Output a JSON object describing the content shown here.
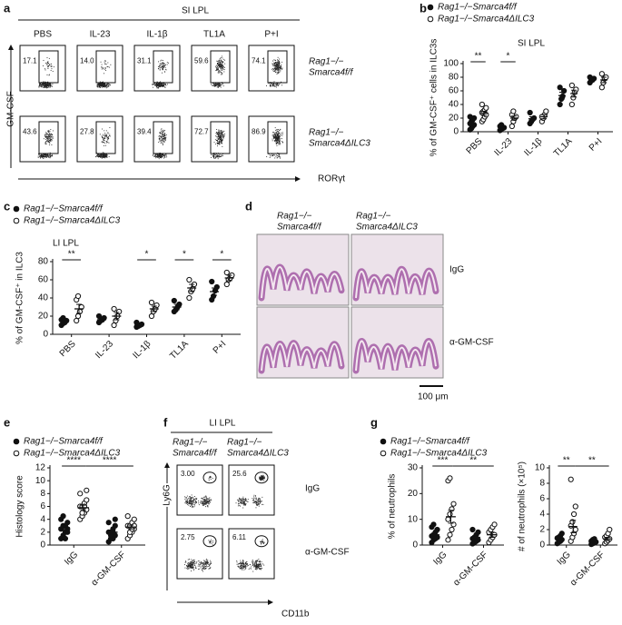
{
  "panel_letters": [
    "a",
    "b",
    "c",
    "d",
    "e",
    "f",
    "g"
  ],
  "panels": {
    "a": {
      "title": "SI LPL",
      "conditions": [
        "PBS",
        "IL-23",
        "IL-1β",
        "TL1A",
        "P+I"
      ],
      "y_axis": "GM-CSF",
      "x_axis": "RORγt",
      "rows": [
        {
          "label": [
            "Rag1−/−",
            "Smarca4f/f"
          ],
          "gates": [
            "17.1",
            "14.0",
            "31.1",
            "59.6",
            "74.1"
          ]
        },
        {
          "label": [
            "Rag1−/−",
            "Smarca4ΔILC3"
          ],
          "gates": [
            "43.6",
            "27.8",
            "39.4",
            "72.7",
            "86.9"
          ]
        }
      ]
    },
    "d": {
      "columns": [
        [
          "Rag1−/−",
          "Smarca4f/f"
        ],
        [
          "Rag1−/−",
          "Smarca4ΔILC3"
        ]
      ],
      "rows": [
        "IgG",
        "α-GM-CSF"
      ],
      "scale_bar": "100 μm"
    },
    "f": {
      "title": "LI LPL",
      "columns": [
        [
          "Rag1−/−",
          "Smarca4f/f"
        ],
        [
          "Rag1−/−",
          "Smarca4ΔILC3"
        ]
      ],
      "rows": [
        "IgG",
        "α-GM-CSF"
      ],
      "y_axis": "Ly6G",
      "x_axis": "CD11b",
      "gates": [
        [
          "3.00",
          "25.6"
        ],
        [
          "2.75",
          "6.11"
        ]
      ]
    }
  },
  "chart_data": [
    {
      "type": "dot",
      "title": "SI LPL",
      "ylabel": "% of GM-CSF⁺ cells in ILC3s",
      "categories": [
        "PBS",
        "IL-23",
        "IL-1β",
        "TL1A",
        "P+I"
      ],
      "ylim": [
        0,
        100
      ],
      "yticks": [
        0,
        20,
        40,
        60,
        80,
        100
      ],
      "significance": [
        "**",
        "*",
        null,
        null,
        null
      ],
      "series": [
        {
          "name": "Rag1−/−Smarca4f/f",
          "color": "#111111",
          "marker": "filled",
          "values": [
            [
              3,
              5,
              8,
              10,
              12,
              15,
              18,
              20,
              22
            ],
            [
              2,
              4,
              5,
              6,
              8,
              10
            ],
            [
              12,
              15,
              18,
              20,
              28
            ],
            [
              40,
              48,
              52,
              60,
              65
            ],
            [
              72,
              75,
              76,
              78,
              80
            ]
          ],
          "means": [
            13,
            6,
            19,
            53,
            76
          ],
          "errors": [
            2,
            1,
            3,
            5,
            1
          ]
        },
        {
          "name": "Rag1−/−Smarca4ΔILC3",
          "color": "#111111",
          "marker": "open",
          "values": [
            [
              15,
              18,
              22,
              25,
              28,
              30,
              32,
              35,
              40
            ],
            [
              8,
              15,
              20,
              22,
              25,
              30
            ],
            [
              15,
              20,
              25,
              30,
              22
            ],
            [
              40,
              50,
              58,
              62,
              68
            ],
            [
              65,
              72,
              78,
              80,
              85
            ]
          ],
          "means": [
            27,
            20,
            22,
            56,
            76
          ],
          "errors": [
            3,
            3,
            3,
            5,
            4
          ]
        }
      ]
    },
    {
      "type": "dot",
      "title": "LI LPL",
      "ylabel": "% of GM-CSF⁺ in ILC3",
      "categories": [
        "PBS",
        "IL-23",
        "IL-1β",
        "TL1A",
        "P+I"
      ],
      "ylim": [
        0,
        80
      ],
      "yticks": [
        0,
        20,
        40,
        60,
        80
      ],
      "significance": [
        "**",
        null,
        "*",
        "*",
        "*"
      ],
      "series": [
        {
          "name": "Rag1−/−Smarca4f/f",
          "color": "#111111",
          "marker": "filled",
          "values": [
            [
              10,
              12,
              13,
              15,
              16,
              18
            ],
            [
              13,
              15,
              16,
              18,
              20
            ],
            [
              8,
              9,
              10,
              11,
              13
            ],
            [
              25,
              27,
              30,
              33,
              37
            ],
            [
              38,
              42,
              48,
              52,
              58
            ]
          ],
          "means": [
            15,
            16,
            10,
            30,
            47
          ],
          "errors": [
            2,
            2,
            1,
            3,
            4
          ]
        },
        {
          "name": "Rag1−/−Smarca4ΔILC3",
          "color": "#111111",
          "marker": "open",
          "values": [
            [
              15,
              20,
              25,
              30,
              38,
              42
            ],
            [
              10,
              15,
              20,
              25,
              28
            ],
            [
              20,
              25,
              28,
              32,
              35
            ],
            [
              40,
              47,
              50,
              55,
              60
            ],
            [
              55,
              60,
              62,
              65,
              68
            ]
          ],
          "means": [
            28,
            20,
            28,
            51,
            62
          ],
          "errors": [
            5,
            4,
            3,
            4,
            3
          ]
        }
      ]
    },
    {
      "type": "dot",
      "ylabel": "Histology score",
      "categories": [
        "IgG",
        "α-GM-CSF"
      ],
      "ylim": [
        0,
        12
      ],
      "yticks": [
        0,
        2,
        4,
        6,
        8,
        10,
        12
      ],
      "significance": [
        "****",
        "****"
      ],
      "series": [
        {
          "name": "Rag1−/−Smarca4f/f",
          "color": "#111111",
          "marker": "filled",
          "values": [
            [
              1,
              1.5,
              2,
              2,
              2.5,
              3,
              3,
              3.5,
              4,
              4.5,
              1,
              2.5
            ],
            [
              0.5,
              1,
              1,
              1.5,
              2,
              2,
              2.5,
              3,
              3.5,
              1.5,
              2,
              4
            ]
          ],
          "means": [
            2.7,
            2
          ],
          "errors": [
            0.4,
            0.3
          ]
        },
        {
          "name": "Rag1−/−Smarca4ΔILC3",
          "color": "#111111",
          "marker": "open",
          "values": [
            [
              4,
              4.5,
              5,
              5.5,
              6,
              6,
              6.5,
              7,
              8,
              5,
              6,
              8.5
            ],
            [
              1,
              1.5,
              2,
              2.5,
              3,
              3,
              3.5,
              4,
              4.5,
              2,
              2.5,
              3
            ]
          ],
          "means": [
            5.8,
            2.8
          ],
          "errors": [
            0.4,
            0.3
          ]
        }
      ]
    },
    {
      "type": "dot",
      "ylabel": "% of neutrophils",
      "categories": [
        "IgG",
        "α-GM-CSF"
      ],
      "ylim": [
        0,
        30
      ],
      "yticks": [
        0,
        10,
        20,
        30
      ],
      "significance": [
        "***",
        "**"
      ],
      "series": [
        {
          "name": "Rag1−/−Smarca4f/f",
          "color": "#111111",
          "marker": "filled",
          "values": [
            [
              1,
              2,
              2.5,
              3,
              3.5,
              4,
              5,
              6,
              7,
              8
            ],
            [
              0.5,
              1,
              1.5,
              2,
              2.5,
              3,
              4,
              5,
              6
            ]
          ],
          "means": [
            4,
            3
          ],
          "errors": [
            0.8,
            0.6
          ]
        },
        {
          "name": "Rag1−/−Smarca4ΔILC3",
          "color": "#111111",
          "marker": "open",
          "values": [
            [
              2,
              4,
              6,
              8,
              10,
              12,
              14,
              16,
              25,
              26
            ],
            [
              1,
              2,
              3,
              4,
              5,
              6,
              7,
              8
            ]
          ],
          "means": [
            11,
            4
          ],
          "errors": [
            2.5,
            1
          ]
        }
      ]
    },
    {
      "type": "dot",
      "ylabel": "# of neutrophils (×10⁵)",
      "categories": [
        "IgG",
        "α-GM-CSF"
      ],
      "ylim": [
        0,
        10
      ],
      "yticks": [
        0,
        2,
        4,
        6,
        8,
        10
      ],
      "significance": [
        "**",
        "**"
      ],
      "series": [
        {
          "color": "#111111",
          "marker": "filled",
          "values": [
            [
              0.2,
              0.4,
              0.5,
              0.7,
              0.9,
              1,
              1.2,
              1.5
            ],
            [
              0.1,
              0.2,
              0.3,
              0.4,
              0.5,
              0.7,
              0.8
            ]
          ],
          "means": [
            0.7,
            0.4
          ],
          "errors": [
            0.15,
            0.1
          ]
        },
        {
          "color": "#111111",
          "marker": "open",
          "values": [
            [
              0.5,
              1,
              1.5,
              2,
              2.5,
              3,
              4,
              5,
              8.5
            ],
            [
              0.2,
              0.4,
              0.6,
              0.8,
              1,
              1.2,
              1.5,
              2
            ]
          ],
          "means": [
            2.4,
            0.8
          ],
          "errors": [
            0.8,
            0.2
          ]
        }
      ]
    }
  ]
}
